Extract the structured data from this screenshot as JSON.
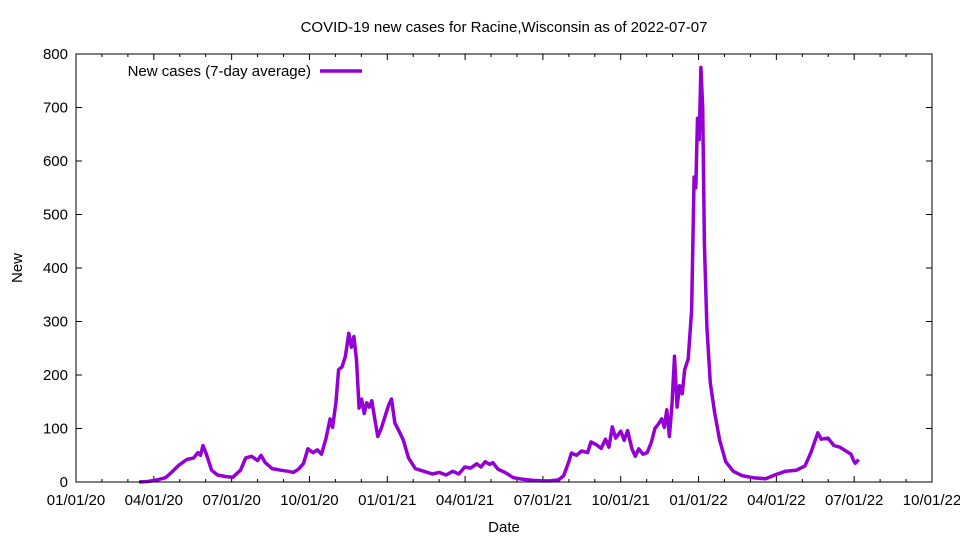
{
  "chart_data": {
    "type": "line",
    "title": "COVID-19 new cases for Racine,Wisconsin as of 2022-07-07",
    "xlabel": "Date",
    "ylabel": "New",
    "xlim": [
      "2020-01-01",
      "2022-10-01"
    ],
    "ylim": [
      0,
      800
    ],
    "x_ticks": [
      "01/01/20",
      "04/01/20",
      "07/01/20",
      "10/01/20",
      "01/01/21",
      "04/01/21",
      "07/01/21",
      "10/01/21",
      "01/01/22",
      "04/01/22",
      "07/01/22",
      "10/01/22"
    ],
    "y_ticks": [
      0,
      100,
      200,
      300,
      400,
      500,
      600,
      700,
      800
    ],
    "grid": false,
    "legend_position": "top-left",
    "color": "#9400d3",
    "series": [
      {
        "name": "New cases (7-day average)",
        "points": [
          [
            "2020-03-15",
            0
          ],
          [
            "2020-03-25",
            1
          ],
          [
            "2020-04-05",
            4
          ],
          [
            "2020-04-15",
            8
          ],
          [
            "2020-04-22",
            18
          ],
          [
            "2020-05-01",
            32
          ],
          [
            "2020-05-10",
            42
          ],
          [
            "2020-05-18",
            45
          ],
          [
            "2020-05-23",
            55
          ],
          [
            "2020-05-26",
            50
          ],
          [
            "2020-05-29",
            68
          ],
          [
            "2020-06-02",
            52
          ],
          [
            "2020-06-08",
            22
          ],
          [
            "2020-06-15",
            13
          ],
          [
            "2020-06-25",
            10
          ],
          [
            "2020-07-03",
            9
          ],
          [
            "2020-07-12",
            22
          ],
          [
            "2020-07-18",
            45
          ],
          [
            "2020-07-25",
            48
          ],
          [
            "2020-08-01",
            40
          ],
          [
            "2020-08-05",
            50
          ],
          [
            "2020-08-10",
            36
          ],
          [
            "2020-08-18",
            25
          ],
          [
            "2020-08-28",
            22
          ],
          [
            "2020-09-06",
            20
          ],
          [
            "2020-09-12",
            18
          ],
          [
            "2020-09-18",
            24
          ],
          [
            "2020-09-24",
            35
          ],
          [
            "2020-09-29",
            62
          ],
          [
            "2020-10-05",
            55
          ],
          [
            "2020-10-10",
            60
          ],
          [
            "2020-10-15",
            52
          ],
          [
            "2020-10-20",
            80
          ],
          [
            "2020-10-25",
            118
          ],
          [
            "2020-10-28",
            102
          ],
          [
            "2020-11-01",
            150
          ],
          [
            "2020-11-04",
            210
          ],
          [
            "2020-11-08",
            215
          ],
          [
            "2020-11-12",
            235
          ],
          [
            "2020-11-16",
            278
          ],
          [
            "2020-11-19",
            252
          ],
          [
            "2020-11-22",
            272
          ],
          [
            "2020-11-25",
            228
          ],
          [
            "2020-11-28",
            138
          ],
          [
            "2020-12-01",
            155
          ],
          [
            "2020-12-04",
            128
          ],
          [
            "2020-12-07",
            148
          ],
          [
            "2020-12-10",
            140
          ],
          [
            "2020-12-13",
            152
          ],
          [
            "2020-12-17",
            112
          ],
          [
            "2020-12-20",
            85
          ],
          [
            "2020-12-24",
            100
          ],
          [
            "2020-12-28",
            120
          ],
          [
            "2021-01-02",
            145
          ],
          [
            "2021-01-05",
            155
          ],
          [
            "2021-01-09",
            110
          ],
          [
            "2021-01-14",
            95
          ],
          [
            "2021-01-19",
            78
          ],
          [
            "2021-01-25",
            45
          ],
          [
            "2021-02-02",
            25
          ],
          [
            "2021-02-12",
            20
          ],
          [
            "2021-02-22",
            15
          ],
          [
            "2021-03-02",
            18
          ],
          [
            "2021-03-10",
            13
          ],
          [
            "2021-03-18",
            20
          ],
          [
            "2021-03-25",
            15
          ],
          [
            "2021-04-01",
            28
          ],
          [
            "2021-04-08",
            26
          ],
          [
            "2021-04-15",
            34
          ],
          [
            "2021-04-20",
            28
          ],
          [
            "2021-04-25",
            38
          ],
          [
            "2021-04-30",
            33
          ],
          [
            "2021-05-04",
            36
          ],
          [
            "2021-05-10",
            24
          ],
          [
            "2021-05-18",
            18
          ],
          [
            "2021-05-28",
            8
          ],
          [
            "2021-06-08",
            5
          ],
          [
            "2021-06-20",
            3
          ],
          [
            "2021-07-01",
            2
          ],
          [
            "2021-07-10",
            2
          ],
          [
            "2021-07-20",
            4
          ],
          [
            "2021-07-26",
            12
          ],
          [
            "2021-08-01",
            38
          ],
          [
            "2021-08-04",
            54
          ],
          [
            "2021-08-10",
            50
          ],
          [
            "2021-08-16",
            58
          ],
          [
            "2021-08-23",
            55
          ],
          [
            "2021-08-27",
            75
          ],
          [
            "2021-09-02",
            70
          ],
          [
            "2021-09-08",
            63
          ],
          [
            "2021-09-13",
            80
          ],
          [
            "2021-09-17",
            65
          ],
          [
            "2021-09-21",
            103
          ],
          [
            "2021-09-25",
            82
          ],
          [
            "2021-10-01",
            95
          ],
          [
            "2021-10-05",
            78
          ],
          [
            "2021-10-09",
            96
          ],
          [
            "2021-10-14",
            62
          ],
          [
            "2021-10-18",
            48
          ],
          [
            "2021-10-22",
            62
          ],
          [
            "2021-10-27",
            52
          ],
          [
            "2021-11-01",
            55
          ],
          [
            "2021-11-06",
            75
          ],
          [
            "2021-11-10",
            100
          ],
          [
            "2021-11-14",
            108
          ],
          [
            "2021-11-18",
            118
          ],
          [
            "2021-11-21",
            102
          ],
          [
            "2021-11-24",
            135
          ],
          [
            "2021-11-27",
            85
          ],
          [
            "2021-11-30",
            145
          ],
          [
            "2021-12-03",
            235
          ],
          [
            "2021-12-06",
            140
          ],
          [
            "2021-12-09",
            180
          ],
          [
            "2021-12-12",
            165
          ],
          [
            "2021-12-15",
            210
          ],
          [
            "2021-12-19",
            230
          ],
          [
            "2021-12-23",
            320
          ],
          [
            "2021-12-26",
            570
          ],
          [
            "2021-12-28",
            550
          ],
          [
            "2021-12-30",
            680
          ],
          [
            "2022-01-01",
            640
          ],
          [
            "2022-01-03",
            775
          ],
          [
            "2022-01-05",
            700
          ],
          [
            "2022-01-07",
            445
          ],
          [
            "2022-01-10",
            290
          ],
          [
            "2022-01-14",
            185
          ],
          [
            "2022-01-19",
            130
          ],
          [
            "2022-01-25",
            78
          ],
          [
            "2022-02-01",
            38
          ],
          [
            "2022-02-10",
            20
          ],
          [
            "2022-02-20",
            12
          ],
          [
            "2022-03-05",
            8
          ],
          [
            "2022-03-20",
            6
          ],
          [
            "2022-04-01",
            14
          ],
          [
            "2022-04-12",
            20
          ],
          [
            "2022-04-25",
            22
          ],
          [
            "2022-05-05",
            30
          ],
          [
            "2022-05-12",
            55
          ],
          [
            "2022-05-17",
            78
          ],
          [
            "2022-05-20",
            92
          ],
          [
            "2022-05-24",
            80
          ],
          [
            "2022-06-01",
            82
          ],
          [
            "2022-06-08",
            68
          ],
          [
            "2022-06-15",
            65
          ],
          [
            "2022-06-22",
            58
          ],
          [
            "2022-06-28",
            52
          ],
          [
            "2022-07-01",
            40
          ],
          [
            "2022-07-03",
            35
          ],
          [
            "2022-07-07",
            42
          ]
        ]
      }
    ]
  }
}
